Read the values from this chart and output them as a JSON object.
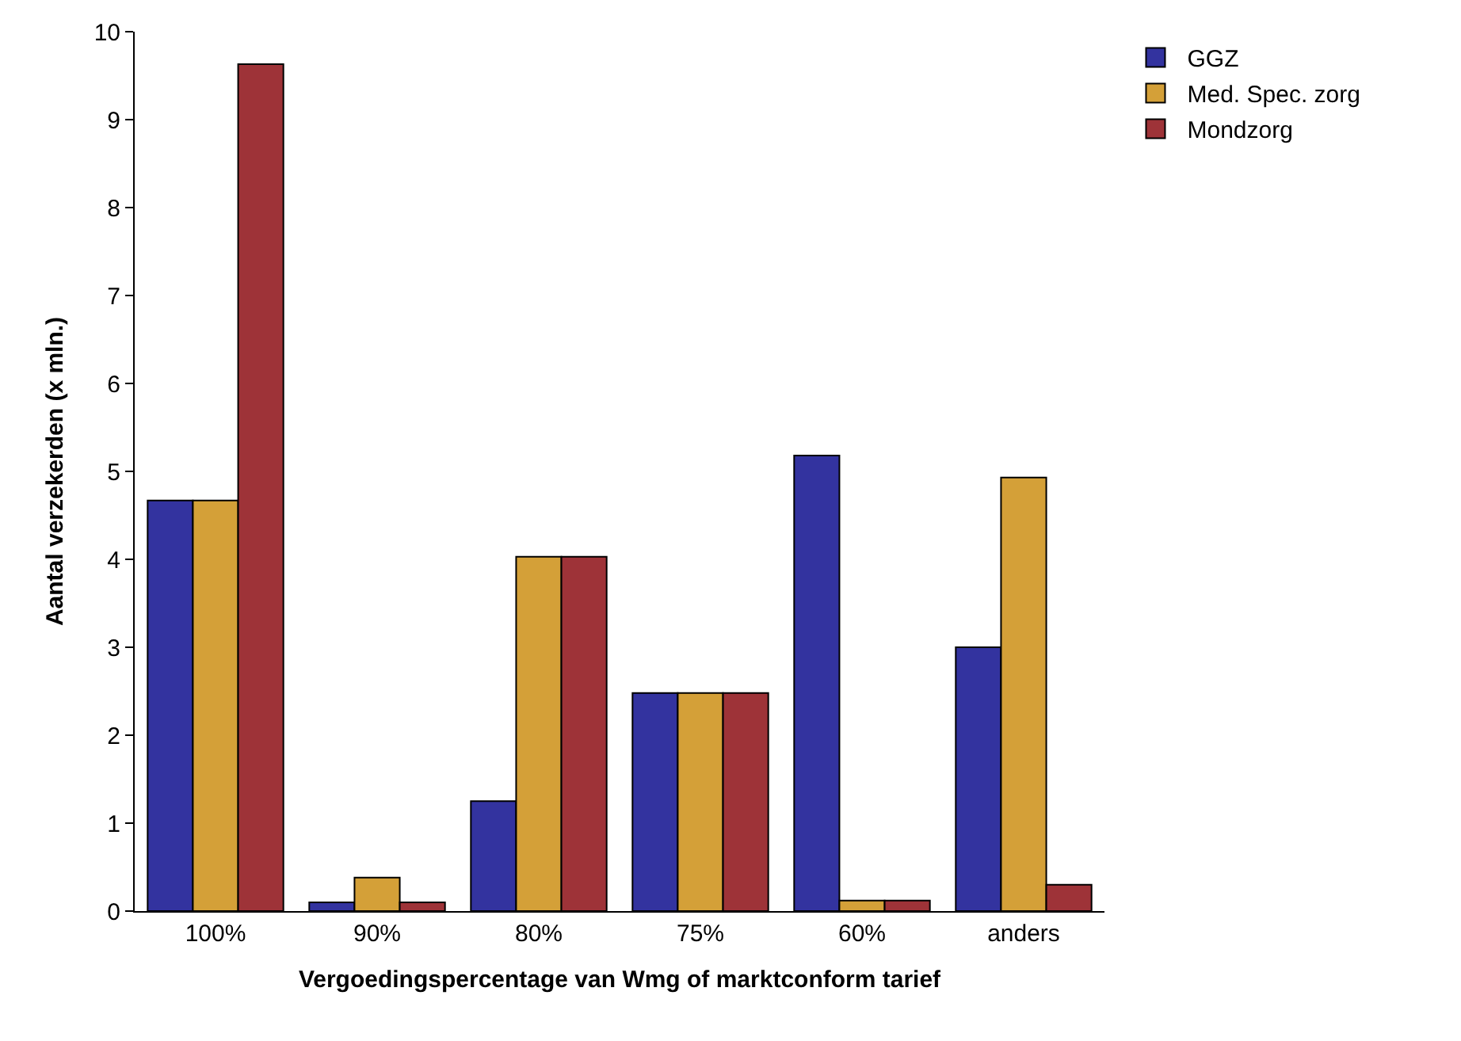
{
  "chart_data": {
    "type": "bar",
    "xlabel": "Vergoedingspercentage van Wmg of marktconform tarief",
    "ylabel": "Aantal verzekerden (x mln.)",
    "categories": [
      "100%",
      "90%",
      "80%",
      "75%",
      "60%",
      "anders"
    ],
    "series": [
      {
        "name": "GGZ",
        "color": "#33339f",
        "values": [
          4.67,
          0.1,
          1.25,
          2.48,
          5.18,
          3.0
        ]
      },
      {
        "name": "Med. Spec. zorg",
        "color": "#d4a038",
        "values": [
          4.67,
          0.38,
          4.03,
          2.48,
          0.12,
          4.93
        ]
      },
      {
        "name": "Mondzorg",
        "color": "#9e3338",
        "values": [
          9.63,
          0.1,
          4.03,
          2.48,
          0.12,
          0.3
        ]
      }
    ],
    "ylim": [
      0,
      10
    ],
    "yticks": [
      0,
      1,
      2,
      3,
      4,
      5,
      6,
      7,
      8,
      9,
      10
    ],
    "grid": false,
    "legend": "top right"
  }
}
